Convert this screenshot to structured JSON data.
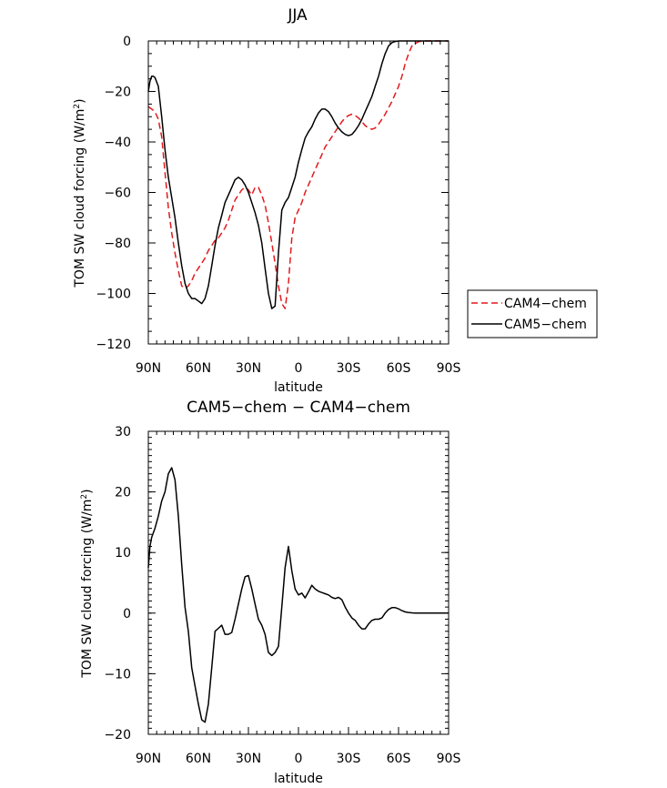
{
  "chart_data": [
    {
      "type": "line",
      "title": "JJA",
      "xlabel": "latitude",
      "ylabel": "TOM SW cloud forcing (W/m",
      "ylabel_sup": "2",
      "ylabel_tail": ")",
      "xlim": [
        90,
        -90
      ],
      "ylim": [
        -120,
        0
      ],
      "xticks": [
        90,
        60,
        30,
        0,
        -30,
        -60,
        -90
      ],
      "xtick_labels": [
        "90N",
        "60N",
        "30N",
        "0",
        "30S",
        "60S",
        "90S"
      ],
      "yticks": [
        -120,
        -100,
        -80,
        -60,
        -40,
        -20,
        0
      ],
      "ytick_labels": [
        "−120",
        "−100",
        "−80",
        "−60",
        "−40",
        "−20",
        "0"
      ],
      "legend": {
        "entries": [
          "CAM4−chem",
          "CAM5−chem"
        ]
      },
      "series": [
        {
          "name": "CAM4-chem",
          "color": "#e31a1c",
          "style": "dashed",
          "x": [
            90,
            88,
            86,
            84,
            82,
            80,
            78,
            76,
            74,
            72,
            70,
            68,
            66,
            64,
            62,
            60,
            58,
            56,
            54,
            52,
            50,
            48,
            46,
            44,
            42,
            40,
            38,
            36,
            34,
            32,
            30,
            28,
            26,
            24,
            22,
            20,
            18,
            16,
            14,
            12,
            10,
            8,
            6,
            4,
            2,
            0,
            -2,
            -4,
            -6,
            -8,
            -10,
            -12,
            -14,
            -16,
            -18,
            -20,
            -22,
            -24,
            -26,
            -28,
            -30,
            -32,
            -34,
            -36,
            -38,
            -40,
            -42,
            -44,
            -46,
            -48,
            -50,
            -52,
            -54,
            -56,
            -58,
            -60,
            -62,
            -64,
            -66,
            -68,
            -70,
            -72,
            -75,
            -80,
            -85,
            -90
          ],
          "y": [
            -26,
            -27,
            -28,
            -31,
            -38,
            -52,
            -66,
            -76,
            -84,
            -91,
            -97,
            -98,
            -97,
            -95,
            -92,
            -90,
            -88,
            -86,
            -83,
            -81,
            -79,
            -78,
            -76,
            -74,
            -71,
            -67,
            -63,
            -61,
            -59,
            -58,
            -59,
            -61,
            -58,
            -58,
            -61,
            -65,
            -72,
            -80,
            -88,
            -97,
            -104,
            -106,
            -96,
            -78,
            -70,
            -67,
            -64,
            -60,
            -57,
            -54,
            -51,
            -48,
            -45,
            -42,
            -40,
            -38,
            -36,
            -34,
            -32,
            -30.5,
            -29.5,
            -29,
            -29.5,
            -30.5,
            -32,
            -33.5,
            -34.5,
            -35,
            -34.5,
            -33,
            -31,
            -29,
            -26.5,
            -24,
            -21,
            -18,
            -14,
            -9,
            -5,
            -2,
            -1,
            -0.3,
            0,
            0,
            0,
            0
          ]
        },
        {
          "name": "CAM5-chem",
          "color": "#000000",
          "style": "solid",
          "x": [
            90,
            89,
            88,
            87,
            86,
            84,
            82,
            80,
            78,
            76,
            74,
            72,
            70,
            68,
            66,
            64,
            62,
            60,
            58,
            56,
            54,
            52,
            50,
            48,
            46,
            44,
            42,
            40,
            38,
            36,
            34,
            32,
            30,
            28,
            26,
            24,
            22,
            20,
            18,
            16,
            14,
            12,
            10,
            8,
            6,
            4,
            2,
            0,
            -2,
            -4,
            -6,
            -8,
            -10,
            -12,
            -14,
            -16,
            -18,
            -20,
            -22,
            -24,
            -26,
            -28,
            -30,
            -32,
            -34,
            -36,
            -38,
            -40,
            -42,
            -44,
            -46,
            -48,
            -50,
            -52,
            -54,
            -56,
            -58,
            -60,
            -62,
            -64,
            -66,
            -68,
            -70,
            -72,
            -75,
            -80,
            -85,
            -90
          ],
          "y": [
            -20,
            -16,
            -14,
            -14,
            -14.5,
            -18,
            -30,
            -43,
            -54,
            -62,
            -70,
            -80,
            -89,
            -96,
            -100,
            -102,
            -102,
            -103,
            -104,
            -102,
            -97,
            -89,
            -81,
            -74,
            -69,
            -64,
            -61,
            -58,
            -55,
            -54,
            -55,
            -57,
            -60,
            -64,
            -68,
            -73,
            -80,
            -90,
            -100,
            -106,
            -105,
            -84,
            -67,
            -64,
            -62,
            -58,
            -54,
            -48,
            -43,
            -38.5,
            -36,
            -34,
            -31,
            -28.5,
            -27,
            -27,
            -28,
            -30,
            -32.5,
            -34.5,
            -36,
            -37,
            -37.5,
            -37,
            -35.5,
            -33.5,
            -31,
            -28,
            -25,
            -22,
            -18,
            -14,
            -9,
            -5,
            -2,
            -0.7,
            -0.2,
            0,
            0,
            0,
            0,
            0,
            0,
            0,
            0,
            0,
            0,
            0
          ]
        }
      ]
    },
    {
      "type": "line",
      "title": "CAM5−chem − CAM4−chem",
      "xlabel": "latitude",
      "ylabel": "TOM SW cloud forcing (W/m",
      "ylabel_sup": "2",
      "ylabel_tail": ")",
      "xlim": [
        90,
        -90
      ],
      "ylim": [
        -20,
        30
      ],
      "xticks": [
        90,
        60,
        30,
        0,
        -30,
        -60,
        -90
      ],
      "xtick_labels": [
        "90N",
        "60N",
        "30N",
        "0",
        "30S",
        "60S",
        "90S"
      ],
      "yticks": [
        -20,
        -10,
        0,
        10,
        20,
        30
      ],
      "ytick_labels": [
        "−20",
        "−10",
        "0",
        "10",
        "20",
        "30"
      ],
      "series": [
        {
          "name": "CAM5-chem minus CAM4-chem",
          "color": "#000000",
          "style": "solid",
          "x": [
            90,
            89,
            88,
            86,
            84,
            82,
            80,
            78,
            76,
            74,
            72,
            70,
            68,
            66,
            64,
            62,
            60,
            58,
            56,
            54,
            52,
            50,
            48,
            46,
            44,
            42,
            40,
            38,
            36,
            34,
            32,
            30,
            28,
            26,
            24,
            22,
            20,
            18,
            16,
            14,
            12,
            10,
            8,
            6,
            4,
            2,
            0,
            -2,
            -4,
            -6,
            -8,
            -10,
            -12,
            -14,
            -16,
            -18,
            -20,
            -22,
            -24,
            -26,
            -28,
            -30,
            -32,
            -34,
            -36,
            -38,
            -40,
            -42,
            -44,
            -46,
            -48,
            -50,
            -52,
            -54,
            -56,
            -58,
            -60,
            -62,
            -64,
            -66,
            -68,
            -70,
            -72,
            -75,
            -80,
            -85,
            -90
          ],
          "y": [
            7.5,
            11,
            12.5,
            14,
            16,
            18.5,
            20,
            23,
            24,
            22,
            16,
            8,
            1,
            -3,
            -9,
            -12,
            -15,
            -17.6,
            -18,
            -15,
            -9,
            -3,
            -2.5,
            -2,
            -3.5,
            -3.5,
            -3.2,
            -1,
            1.5,
            4,
            6,
            6.2,
            4,
            1.5,
            -1,
            -2,
            -3.5,
            -6.5,
            -7,
            -6.5,
            -5.5,
            1,
            7.5,
            11,
            7,
            4,
            3,
            3.3,
            2.5,
            3.5,
            4.6,
            4,
            3.6,
            3.4,
            3.2,
            3,
            2.6,
            2.4,
            2.6,
            2.2,
            1,
            0,
            -0.8,
            -1.2,
            -2,
            -2.6,
            -2.6,
            -1.8,
            -1.2,
            -1.0,
            -1,
            -0.8,
            0,
            0.6,
            0.9,
            0.9,
            0.7,
            0.4,
            0.2,
            0.1,
            0.05,
            0,
            0,
            0,
            0,
            0,
            0
          ]
        }
      ]
    }
  ]
}
